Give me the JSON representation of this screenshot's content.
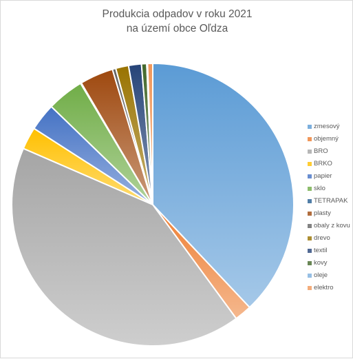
{
  "chart_data": {
    "type": "pie",
    "title_lines": [
      "Produkcia odpadov v roku 2021",
      "na území obce Oľdza"
    ],
    "legend_position": "right",
    "categories": [
      "zmesový",
      "objemný",
      "BRO",
      "BRKO",
      "papier",
      "sklo",
      "TETRAPAK",
      "plasty",
      "obaly z kovu",
      "drevo",
      "textil",
      "kovy",
      "oleje",
      "elektro"
    ],
    "values": [
      38.6,
      2.0,
      42.3,
      2.6,
      3.2,
      4.3,
      0.1,
      3.9,
      0.4,
      1.5,
      1.5,
      0.6,
      0.1,
      0.6
    ],
    "colors": [
      "#5b9bd5",
      "#ed7d31",
      "#a5a5a5",
      "#ffc000",
      "#4472c4",
      "#70ad47",
      "#255e91",
      "#9e480e",
      "#636363",
      "#997300",
      "#264478",
      "#43682b",
      "#7cafdd",
      "#f1975a"
    ]
  }
}
